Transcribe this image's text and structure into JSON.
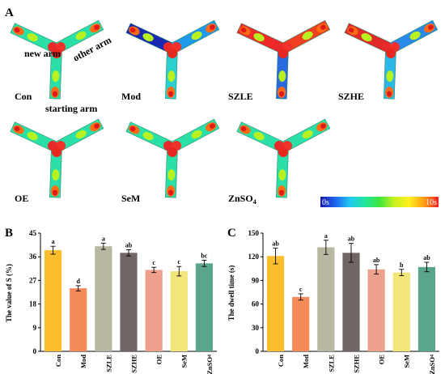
{
  "panel_a": {
    "letter": "A",
    "arm_labels": {
      "new_arm": "new arm",
      "other_arm": "other arm",
      "starting_arm": "starting arm"
    },
    "maze_groups": [
      "Con",
      "Mod",
      "SZLE",
      "SZHE",
      "OE",
      "SeM",
      "ZnSO4"
    ],
    "colorbar": {
      "min_label": "0s",
      "max_label": "10s",
      "colors": [
        "#1a1aa8",
        "#1e64f0",
        "#20c8f0",
        "#22e6a0",
        "#3ce63c",
        "#c8f020",
        "#fff01e",
        "#ffa014",
        "#f01e1e"
      ]
    }
  },
  "chart_data": [
    {
      "type": "bar",
      "panel_letter": "B",
      "categories": [
        "Con",
        "Mod",
        "SZLE",
        "SZHE",
        "OE",
        "SeM",
        "ZnSO4"
      ],
      "values": [
        38.5,
        24.0,
        40.0,
        37.5,
        31.0,
        30.5,
        33.5
      ],
      "errors": [
        1.5,
        1.0,
        1.2,
        1.2,
        1.0,
        1.8,
        1.2
      ],
      "sig_letters": [
        "a",
        "d",
        "a",
        "ab",
        "c",
        "c",
        "bc"
      ],
      "colors": [
        "#fbbf2e",
        "#f58a5a",
        "#b8b7a1",
        "#6f6665",
        "#eda08c",
        "#f2e57a",
        "#5aa58c"
      ],
      "ylabel": "The value of S (%)",
      "ylim": [
        0,
        45
      ],
      "yticks": [
        0,
        9,
        18,
        27,
        36,
        45
      ]
    },
    {
      "type": "bar",
      "panel_letter": "C",
      "categories": [
        "Con",
        "Mod",
        "SZLE",
        "SZHE",
        "OE",
        "SeM",
        "ZnSO4"
      ],
      "values": [
        121,
        69,
        132,
        125,
        104,
        100,
        107
      ],
      "errors": [
        10,
        4,
        9,
        12,
        6,
        4,
        6
      ],
      "sig_letters": [
        "ab",
        "c",
        "a",
        "ab",
        "ab",
        "b",
        "ab"
      ],
      "colors": [
        "#fbbf2e",
        "#f58a5a",
        "#b8b7a1",
        "#6f6665",
        "#eda08c",
        "#f2e57a",
        "#5aa58c"
      ],
      "ylabel": "The dwell time (s)",
      "ylim": [
        0,
        150
      ],
      "yticks": [
        0,
        30,
        60,
        90,
        120,
        150
      ]
    }
  ]
}
